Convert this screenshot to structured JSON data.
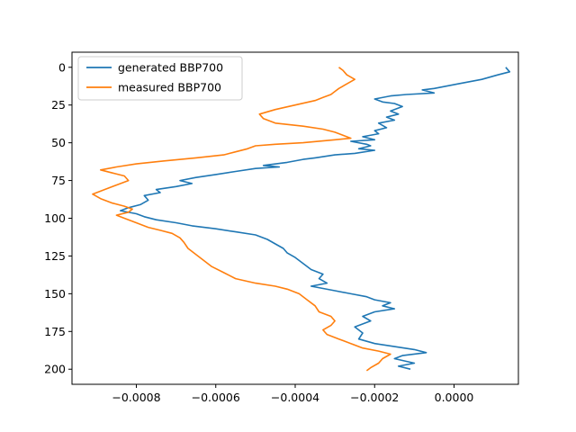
{
  "chart_data": {
    "type": "line",
    "title": "",
    "xlabel": "",
    "ylabel": "",
    "xlim": [
      -0.000962,
      0.000162
    ],
    "ylim": [
      210,
      -10
    ],
    "y_inverted": true,
    "grid": false,
    "legend_position": "upper-left",
    "x_ticks": [
      -0.0008,
      -0.0006,
      -0.0004,
      -0.0002,
      0.0
    ],
    "x_tick_labels": [
      "−0.0008",
      "−0.0006",
      "−0.0004",
      "−0.0002",
      "0.0000"
    ],
    "y_ticks": [
      0,
      25,
      50,
      75,
      100,
      125,
      150,
      175,
      200
    ],
    "y_tick_labels": [
      "0",
      "25",
      "50",
      "75",
      "100",
      "125",
      "150",
      "175",
      "200"
    ],
    "series": [
      {
        "name": "generated BBP700",
        "color": "#1f77b4",
        "points": [
          [
            0.00013,
            0
          ],
          [
            0.00014,
            3
          ],
          [
            0.00011,
            5
          ],
          [
            7e-05,
            8
          ],
          [
            1e-05,
            11
          ],
          [
            -5e-05,
            14
          ],
          [
            -8e-05,
            15
          ],
          [
            -5e-05,
            17
          ],
          [
            -0.00012,
            18
          ],
          [
            -0.00016,
            19
          ],
          [
            -0.0002,
            21
          ],
          [
            -0.00018,
            23
          ],
          [
            -0.00015,
            24
          ],
          [
            -0.00013,
            26
          ],
          [
            -0.00016,
            29
          ],
          [
            -0.00014,
            31
          ],
          [
            -0.00017,
            33
          ],
          [
            -0.00015,
            35
          ],
          [
            -0.00019,
            37
          ],
          [
            -0.00017,
            40
          ],
          [
            -0.0002,
            42
          ],
          [
            -0.00019,
            44
          ],
          [
            -0.00023,
            46
          ],
          [
            -0.0002,
            48
          ],
          [
            -0.00026,
            49
          ],
          [
            -0.00022,
            51
          ],
          [
            -0.00021,
            52
          ],
          [
            -0.00024,
            54
          ],
          [
            -0.0002,
            55
          ],
          [
            -0.00025,
            57
          ],
          [
            -0.0003,
            58
          ],
          [
            -0.00035,
            60
          ],
          [
            -0.00038,
            61
          ],
          [
            -0.00042,
            63
          ],
          [
            -0.00048,
            65
          ],
          [
            -0.00044,
            66
          ],
          [
            -0.0005,
            67
          ],
          [
            -0.00055,
            69
          ],
          [
            -0.0006,
            71
          ],
          [
            -0.00065,
            73
          ],
          [
            -0.00069,
            75
          ],
          [
            -0.00066,
            77
          ],
          [
            -0.0007,
            79
          ],
          [
            -0.00075,
            81
          ],
          [
            -0.00074,
            83
          ],
          [
            -0.00078,
            85
          ],
          [
            -0.00077,
            88
          ],
          [
            -0.00079,
            91
          ],
          [
            -0.00082,
            93
          ],
          [
            -0.00084,
            95
          ],
          [
            -0.0008,
            97
          ],
          [
            -0.00078,
            99
          ],
          [
            -0.00075,
            101
          ],
          [
            -0.0007,
            103
          ],
          [
            -0.00066,
            105
          ],
          [
            -0.0006,
            107
          ],
          [
            -0.00055,
            109
          ],
          [
            -0.0005,
            111
          ],
          [
            -0.00047,
            114
          ],
          [
            -0.00045,
            117
          ],
          [
            -0.00043,
            120
          ],
          [
            -0.00042,
            123
          ],
          [
            -0.0004,
            126
          ],
          [
            -0.00038,
            130
          ],
          [
            -0.00036,
            134
          ],
          [
            -0.00033,
            137
          ],
          [
            -0.00034,
            140
          ],
          [
            -0.00032,
            143
          ],
          [
            -0.00036,
            145
          ],
          [
            -0.0003,
            148
          ],
          [
            -0.00026,
            150
          ],
          [
            -0.00022,
            152
          ],
          [
            -0.0002,
            154
          ],
          [
            -0.00016,
            156
          ],
          [
            -0.00018,
            158
          ],
          [
            -0.00015,
            160
          ],
          [
            -0.0002,
            162
          ],
          [
            -0.00023,
            165
          ],
          [
            -0.00021,
            168
          ],
          [
            -0.00025,
            172
          ],
          [
            -0.00023,
            176
          ],
          [
            -0.00024,
            180
          ],
          [
            -0.0002,
            183
          ],
          [
            -0.00015,
            185
          ],
          [
            -0.0001,
            187
          ],
          [
            -7e-05,
            189
          ],
          [
            -0.00013,
            191
          ],
          [
            -0.00015,
            193
          ],
          [
            -0.0001,
            196
          ],
          [
            -0.00014,
            198
          ],
          [
            -0.00011,
            200
          ]
        ]
      },
      {
        "name": "measured BBP700",
        "color": "#ff7f0e",
        "points": [
          [
            -0.00029,
            0
          ],
          [
            -0.00028,
            2
          ],
          [
            -0.00027,
            5
          ],
          [
            -0.00025,
            8
          ],
          [
            -0.00027,
            11
          ],
          [
            -0.00029,
            14
          ],
          [
            -0.0003,
            16
          ],
          [
            -0.00031,
            18
          ],
          [
            -0.00033,
            20
          ],
          [
            -0.00035,
            22
          ],
          [
            -0.0004,
            25
          ],
          [
            -0.00045,
            28
          ],
          [
            -0.00049,
            31
          ],
          [
            -0.00048,
            34
          ],
          [
            -0.00045,
            37
          ],
          [
            -0.00038,
            39
          ],
          [
            -0.00033,
            41
          ],
          [
            -0.0003,
            43
          ],
          [
            -0.00028,
            45
          ],
          [
            -0.00026,
            47
          ],
          [
            -0.0003,
            48
          ],
          [
            -0.00038,
            50
          ],
          [
            -0.00045,
            51
          ],
          [
            -0.0005,
            52
          ],
          [
            -0.00052,
            54
          ],
          [
            -0.00055,
            56
          ],
          [
            -0.00058,
            58
          ],
          [
            -0.00065,
            60
          ],
          [
            -0.00073,
            62
          ],
          [
            -0.0008,
            64
          ],
          [
            -0.00085,
            66
          ],
          [
            -0.00089,
            68
          ],
          [
            -0.00086,
            70
          ],
          [
            -0.00083,
            72
          ],
          [
            -0.00082,
            75
          ],
          [
            -0.00085,
            78
          ],
          [
            -0.00088,
            81
          ],
          [
            -0.00091,
            84
          ],
          [
            -0.00089,
            87
          ],
          [
            -0.00086,
            90
          ],
          [
            -0.00083,
            92
          ],
          [
            -0.00081,
            94
          ],
          [
            -0.00082,
            96
          ],
          [
            -0.00085,
            98
          ],
          [
            -0.00083,
            100
          ],
          [
            -0.00081,
            102
          ],
          [
            -0.00079,
            104
          ],
          [
            -0.00077,
            106
          ],
          [
            -0.00074,
            108
          ],
          [
            -0.00071,
            110
          ],
          [
            -0.00069,
            113
          ],
          [
            -0.00068,
            116
          ],
          [
            -0.00067,
            120
          ],
          [
            -0.00065,
            124
          ],
          [
            -0.00063,
            128
          ],
          [
            -0.00061,
            132
          ],
          [
            -0.00058,
            136
          ],
          [
            -0.00055,
            140
          ],
          [
            -0.0005,
            143
          ],
          [
            -0.00045,
            145
          ],
          [
            -0.00042,
            147
          ],
          [
            -0.00039,
            150
          ],
          [
            -0.00037,
            154
          ],
          [
            -0.00035,
            158
          ],
          [
            -0.00034,
            162
          ],
          [
            -0.00031,
            165
          ],
          [
            -0.0003,
            168
          ],
          [
            -0.00031,
            171
          ],
          [
            -0.00033,
            174
          ],
          [
            -0.00032,
            177
          ],
          [
            -0.00029,
            180
          ],
          [
            -0.00026,
            183
          ],
          [
            -0.00023,
            186
          ],
          [
            -0.00019,
            188
          ],
          [
            -0.00016,
            190
          ],
          [
            -0.00018,
            193
          ],
          [
            -0.00019,
            196
          ],
          [
            -0.00021,
            199
          ],
          [
            -0.00022,
            201
          ]
        ]
      }
    ]
  }
}
